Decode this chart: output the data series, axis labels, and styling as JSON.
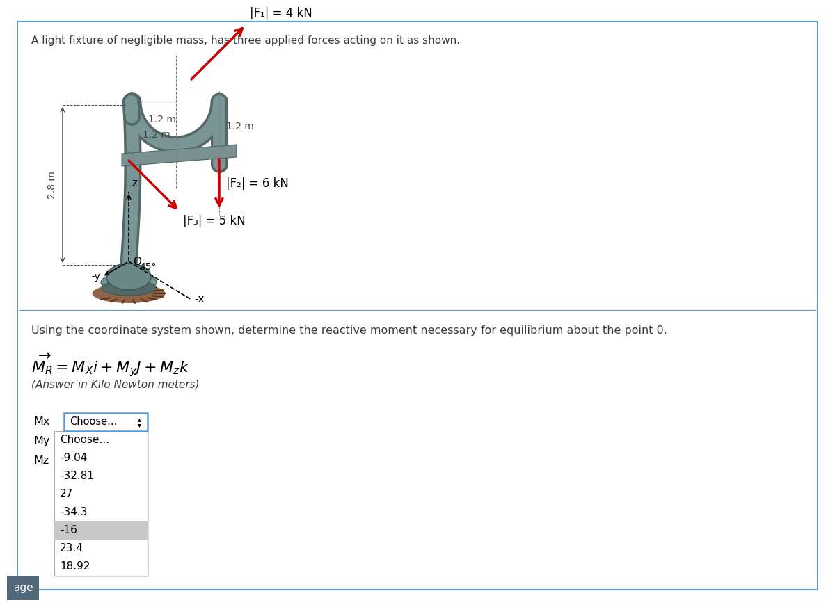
{
  "title_text": "A light fixture of negligible mass, has three applied forces acting on it as shown.",
  "description_text": "Using the coordinate system shown, determine the reactive moment necessary for equilibrium about the point 0.",
  "answer_label": "(Answer in Kilo Newton meters)",
  "F1_label": "|F₁| = 4 kN",
  "F2_label": "|F₂| = 6 kN",
  "F3_label": "|F₃| = 5 kN",
  "dim_1": "1.2 m",
  "dim_2": "1.2 m",
  "dim_3": "1.2 m",
  "dim_4": "2.8 m",
  "angle_label": "45°",
  "axis_x": "x",
  "axis_y": "y",
  "axis_z": "z",
  "point_O": "O",
  "Mx_label": "Mx",
  "My_label": "My",
  "Mz_label": "Mz",
  "dropdown_items": [
    "Choose...",
    "-9.04",
    "-32.81",
    "27",
    "-34.3",
    "-16",
    "23.4",
    "18.92"
  ],
  "highlighted_item": "-16",
  "bg_color": "#ffffff",
  "border_color": "#5b9bd5",
  "highlight_color": "#c8c8c8",
  "arrow_color": "#cc0000",
  "post_color": "#7a9595",
  "post_dark": "#556666",
  "arm_color": "#7a9090",
  "arm_dark": "#4a6868",
  "base_color": "#607878",
  "ground_color": "#8B5E3C",
  "dim_color": "#444444",
  "text_color": "#3c3c3c",
  "age_bg": "#506878",
  "age_text": "age"
}
